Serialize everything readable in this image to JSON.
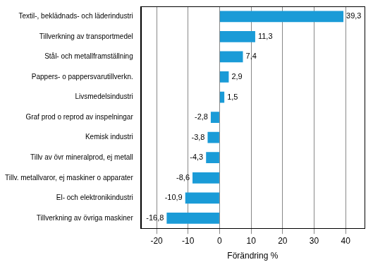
{
  "chart_data": {
    "type": "bar",
    "orientation": "horizontal",
    "x_label": "Förändring %",
    "categories": [
      "Textil-, beklädnads- och läderindustri",
      "Tillverkning av transportmedel",
      "Stål- och metallframställning",
      "Pappers- o pappersvarutillverkn.",
      "Livsmedelsindustri",
      "Graf prod o reprod av inspelningar",
      "Kemisk industri",
      "Tillv av övr mineralprod, ej metall",
      "Tillv. metallvaror, ej maskiner o apparater",
      "El- och elektronikindustri",
      "Tillverkning av övriga maskiner"
    ],
    "values": [
      39.3,
      11.3,
      7.4,
      2.9,
      1.5,
      -2.8,
      -3.8,
      -4.3,
      -8.6,
      -10.9,
      -16.8
    ],
    "value_labels": [
      "39,3",
      "11,3",
      "7,4",
      "2,9",
      "1,5",
      "-2,8",
      "-3,8",
      "-4,3",
      "-8,6",
      "-10,9",
      "-16,8"
    ],
    "data_labels": true,
    "color": "#1a9bd7",
    "xlim": [
      -25,
      46
    ],
    "xticks": [
      -20,
      -10,
      0,
      10,
      20,
      30,
      40
    ],
    "grid": true
  }
}
